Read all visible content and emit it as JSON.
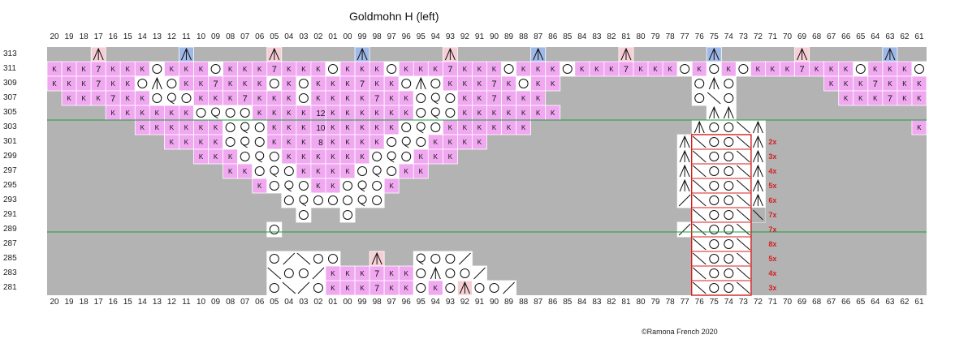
{
  "title": "Goldmohn H (left)",
  "copyright": "©Ramona French 2020",
  "columns": [
    "20",
    "19",
    "18",
    "17",
    "16",
    "15",
    "14",
    "13",
    "12",
    "11",
    "10",
    "09",
    "08",
    "07",
    "06",
    "05",
    "04",
    "03",
    "02",
    "01",
    "00",
    "99",
    "98",
    "97",
    "96",
    "95",
    "94",
    "93",
    "92",
    "91",
    "90",
    "89",
    "88",
    "87",
    "86",
    "85",
    "84",
    "83",
    "82",
    "81",
    "80",
    "79",
    "78",
    "77",
    "76",
    "75",
    "74",
    "73",
    "72",
    "71",
    "70",
    "69",
    "68",
    "67",
    "66",
    "65",
    "64",
    "63",
    "62",
    "61"
  ],
  "rows": [
    "313",
    "311",
    "309",
    "307",
    "305",
    "303",
    "301",
    "299",
    "297",
    "295",
    "293",
    "291",
    "289",
    "287",
    "285",
    "283",
    "281"
  ],
  "colors": {
    "background": "#b3b3b3",
    "knit": "#f0a8f0",
    "white": "#ffffff",
    "blue": "#9eb8e8",
    "pink": "#f6cfd6",
    "grid": "#ffffff",
    "divider": "#1e9e3c",
    "repeat_box": "#d42020"
  },
  "legend": {
    "k": "K",
    "seven": "7"
  },
  "counts": {
    "r305": "12",
    "r303": "10",
    "r301": "8"
  },
  "icons": {
    "k": "knit-icon",
    "o": "yarn-over-icon",
    "q": "twisted-stitch-icon",
    "a": "double-decrease-icon",
    "s": "right-slant-decrease-icon",
    "b": "left-slant-decrease-icon"
  },
  "repeats": [
    {
      "row": "301",
      "label": "2x"
    },
    {
      "row": "299",
      "label": "3x"
    },
    {
      "row": "297",
      "label": "4x"
    },
    {
      "row": "295",
      "label": "5x"
    },
    {
      "row": "293",
      "label": "6x"
    },
    {
      "row": "291",
      "label": "7x"
    },
    {
      "row": "289",
      "label": "7x"
    },
    {
      "row": "287",
      "label": "8x"
    },
    {
      "row": "285",
      "label": "5x"
    },
    {
      "row": "283",
      "label": "4x"
    },
    {
      "row": "281",
      "label": "3x"
    }
  ]
}
